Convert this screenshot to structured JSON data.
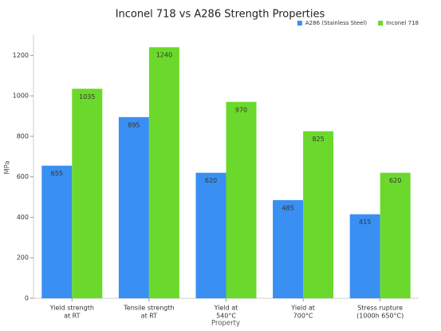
{
  "chart_data": {
    "type": "bar",
    "title": "Inconel 718 vs A286 Strength Properties",
    "x_label": "Property",
    "y_label": "MPa",
    "categories": [
      [
        "Yield strength",
        "at RT"
      ],
      [
        "Tensile strength",
        "at RT"
      ],
      [
        "Yield at",
        "540°C"
      ],
      [
        "Yield at",
        "700°C"
      ],
      [
        "Stress rupture",
        "(1000h 650°C)"
      ]
    ],
    "series": [
      {
        "name": "A286 (Stainless Steel)",
        "color": "#3a8ff2",
        "values": [
          655,
          895,
          620,
          485,
          415
        ]
      },
      {
        "name": "Inconel 718",
        "color": "#6bd92b",
        "values": [
          1035,
          1240,
          970,
          825,
          620
        ]
      }
    ],
    "ylim": [
      0,
      1300
    ],
    "yticks": [
      0,
      200,
      400,
      600,
      800,
      1000,
      1200
    ],
    "grid": false,
    "legend": "top-right"
  }
}
